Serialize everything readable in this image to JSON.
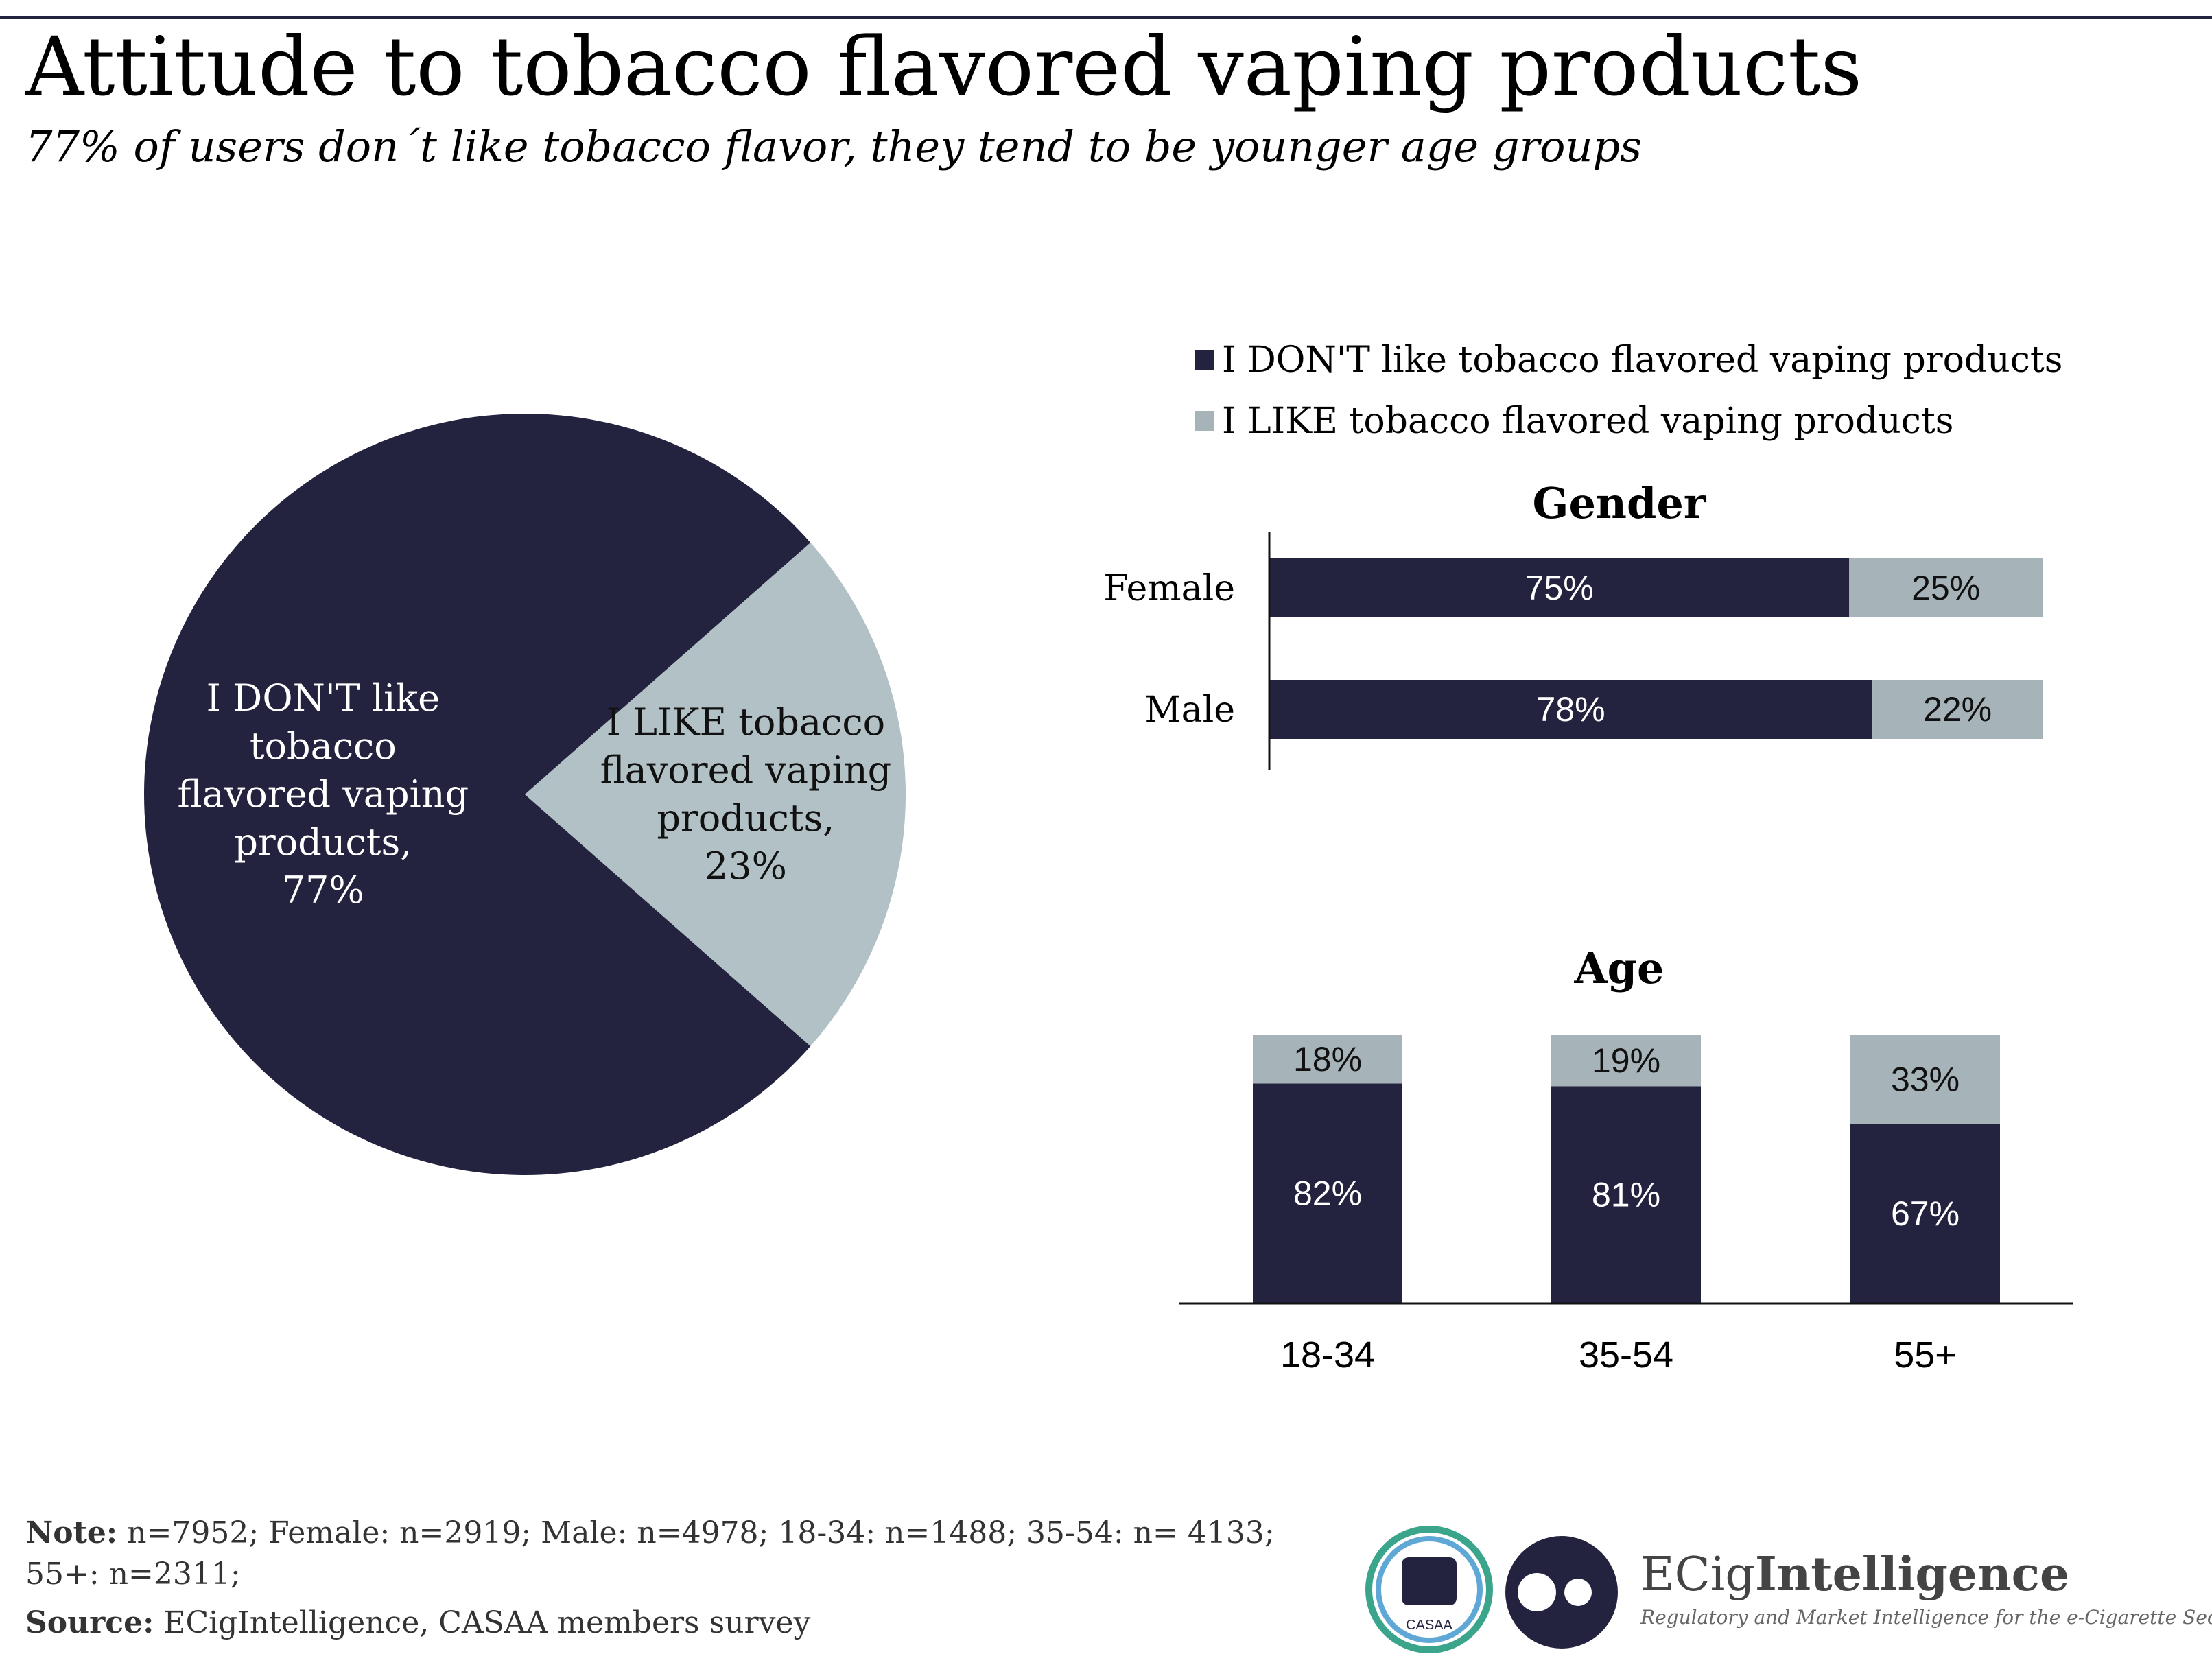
{
  "title": "Attitude to tobacco flavored vaping products",
  "subtitle": "77% of users don´t like tobacco flavor, they tend to be younger age groups",
  "chart_data": [
    {
      "type": "pie",
      "categories": [
        "I DON'T like tobacco flavored vaping products,",
        "I LIKE tobacco flavored vaping products,"
      ],
      "values": [
        77,
        23
      ],
      "value_labels": [
        "77%",
        "23%"
      ],
      "colors": [
        "#23233f",
        "#b1c1c5"
      ]
    },
    {
      "type": "hbar-stacked",
      "title": "Gender",
      "legend": "top",
      "categories": [
        "Female",
        "Male"
      ],
      "xlim": [
        0,
        100
      ],
      "series": [
        {
          "name": "I DON'T like tobacco flavored vaping products",
          "color": "#23233f",
          "values": [
            75,
            78
          ],
          "value_labels": [
            "75%",
            "78%"
          ]
        },
        {
          "name": "I LIKE tobacco flavored vaping products",
          "color": "#a6b4b9",
          "values": [
            25,
            22
          ],
          "value_labels": [
            "25%",
            "22%"
          ]
        }
      ]
    },
    {
      "type": "vbar-stacked",
      "title": "Age",
      "categories": [
        "18-34",
        "35-54",
        "55+"
      ],
      "ylim": [
        0,
        100
      ],
      "series": [
        {
          "color": "#23233f",
          "values": [
            82,
            81,
            67
          ],
          "value_labels": [
            "82%",
            "81%",
            "67%"
          ]
        },
        {
          "color": "#a6b4b9",
          "values": [
            18,
            19,
            33
          ],
          "value_labels": [
            "18%",
            "19%",
            "33%"
          ]
        }
      ]
    }
  ],
  "footer": {
    "note_label": "Note:",
    "note": "n=7952; Female: n=2919; Male: n=4978; 18-34: n=1488; 35-54: n= 4133; 55+: n=2311;",
    "source_label": "Source:",
    "source": "ECigIntelligence, CASAA members survey",
    "casaa": "CASAA",
    "brand_light": "ECig",
    "brand_bold": "Intelligence",
    "tagline": "Regulatory and Market Intelligence for the e-Cigarette Sector"
  }
}
